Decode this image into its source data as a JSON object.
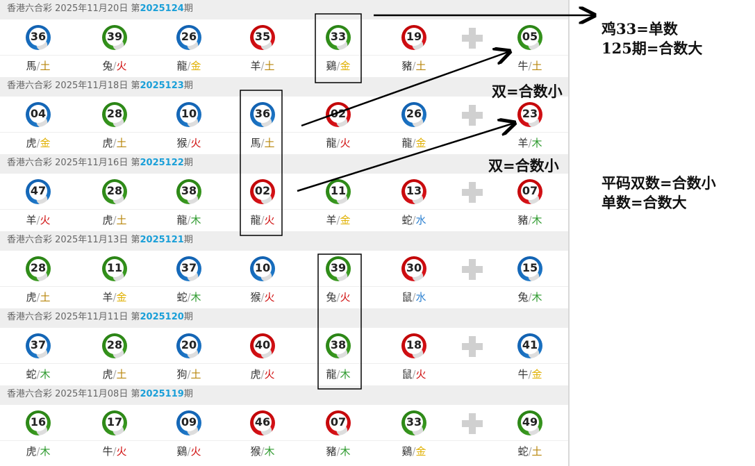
{
  "lottery_name": "香港六合彩",
  "draws": [
    {
      "date": "2025年11月20日",
      "prefix": "第",
      "period": "2025124",
      "suffix": "期",
      "balls": [
        {
          "n": "36",
          "c": "blue",
          "z": "馬",
          "e": "土"
        },
        {
          "n": "39",
          "c": "green",
          "z": "兔",
          "e": "火"
        },
        {
          "n": "26",
          "c": "blue",
          "z": "龍",
          "e": "金"
        },
        {
          "n": "35",
          "c": "red",
          "z": "羊",
          "e": "土"
        },
        {
          "n": "33",
          "c": "green",
          "z": "鷄",
          "e": "金"
        },
        {
          "n": "19",
          "c": "red",
          "z": "豬",
          "e": "土"
        },
        {
          "n": "05",
          "c": "green",
          "z": "牛",
          "e": "土"
        }
      ]
    },
    {
      "date": "2025年11月18日",
      "prefix": "第",
      "period": "2025123",
      "suffix": "期",
      "balls": [
        {
          "n": "04",
          "c": "blue",
          "z": "虎",
          "e": "金"
        },
        {
          "n": "28",
          "c": "green",
          "z": "虎",
          "e": "土"
        },
        {
          "n": "10",
          "c": "blue",
          "z": "猴",
          "e": "火"
        },
        {
          "n": "36",
          "c": "blue",
          "z": "馬",
          "e": "土"
        },
        {
          "n": "02",
          "c": "red",
          "z": "龍",
          "e": "火"
        },
        {
          "n": "26",
          "c": "blue",
          "z": "龍",
          "e": "金"
        },
        {
          "n": "23",
          "c": "red",
          "z": "羊",
          "e": "木"
        }
      ]
    },
    {
      "date": "2025年11月16日",
      "prefix": "第",
      "period": "2025122",
      "suffix": "期",
      "balls": [
        {
          "n": "47",
          "c": "blue",
          "z": "羊",
          "e": "火"
        },
        {
          "n": "28",
          "c": "green",
          "z": "虎",
          "e": "土"
        },
        {
          "n": "38",
          "c": "green",
          "z": "龍",
          "e": "木"
        },
        {
          "n": "02",
          "c": "red",
          "z": "龍",
          "e": "火"
        },
        {
          "n": "11",
          "c": "green",
          "z": "羊",
          "e": "金"
        },
        {
          "n": "13",
          "c": "red",
          "z": "蛇",
          "e": "水"
        },
        {
          "n": "07",
          "c": "red",
          "z": "豬",
          "e": "木"
        }
      ]
    },
    {
      "date": "2025年11月13日",
      "prefix": "第",
      "period": "2025121",
      "suffix": "期",
      "balls": [
        {
          "n": "28",
          "c": "green",
          "z": "虎",
          "e": "土"
        },
        {
          "n": "11",
          "c": "green",
          "z": "羊",
          "e": "金"
        },
        {
          "n": "37",
          "c": "blue",
          "z": "蛇",
          "e": "木"
        },
        {
          "n": "10",
          "c": "blue",
          "z": "猴",
          "e": "火"
        },
        {
          "n": "39",
          "c": "green",
          "z": "兔",
          "e": "火"
        },
        {
          "n": "30",
          "c": "red",
          "z": "鼠",
          "e": "水"
        },
        {
          "n": "15",
          "c": "blue",
          "z": "兔",
          "e": "木"
        }
      ]
    },
    {
      "date": "2025年11月11日",
      "prefix": "第",
      "period": "2025120",
      "suffix": "期",
      "balls": [
        {
          "n": "37",
          "c": "blue",
          "z": "蛇",
          "e": "木"
        },
        {
          "n": "28",
          "c": "green",
          "z": "虎",
          "e": "土"
        },
        {
          "n": "20",
          "c": "blue",
          "z": "狗",
          "e": "土"
        },
        {
          "n": "40",
          "c": "red",
          "z": "虎",
          "e": "火"
        },
        {
          "n": "38",
          "c": "green",
          "z": "龍",
          "e": "木"
        },
        {
          "n": "18",
          "c": "red",
          "z": "鼠",
          "e": "火"
        },
        {
          "n": "41",
          "c": "blue",
          "z": "牛",
          "e": "金"
        }
      ]
    },
    {
      "date": "2025年11月08日",
      "prefix": "第",
      "period": "2025119",
      "suffix": "期",
      "balls": [
        {
          "n": "16",
          "c": "green",
          "z": "虎",
          "e": "木"
        },
        {
          "n": "17",
          "c": "green",
          "z": "牛",
          "e": "火"
        },
        {
          "n": "09",
          "c": "blue",
          "z": "鷄",
          "e": "火"
        },
        {
          "n": "46",
          "c": "red",
          "z": "猴",
          "e": "木"
        },
        {
          "n": "07",
          "c": "red",
          "z": "豬",
          "e": "木"
        },
        {
          "n": "33",
          "c": "green",
          "z": "鷄",
          "e": "金"
        },
        {
          "n": "49",
          "c": "green",
          "z": "蛇",
          "e": "土"
        }
      ]
    }
  ],
  "annotations": {
    "note1": "鸡33=单数",
    "note2": "125期=合数大",
    "note3": "双=合数小",
    "note4": "双=合数小",
    "note5": "平码双数=合数小",
    "note6": "单数=合数大"
  }
}
